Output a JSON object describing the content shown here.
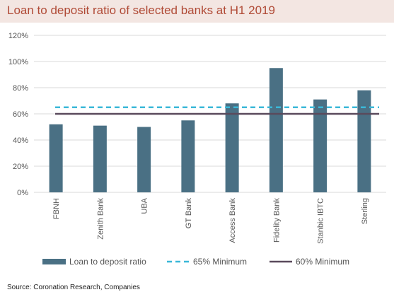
{
  "title": "Loan to deposit ratio of selected banks at H1 2019",
  "source": "Source: Coronation Research, Companies",
  "chart_data": {
    "type": "bar",
    "categories": [
      "FBNH",
      "Zenith Bank",
      "UBA",
      "GT Bank",
      "Access Bank",
      "Fidelity Bank",
      "Stanbic IBTC",
      "Sterling"
    ],
    "series": [
      {
        "name": "Loan to deposit ratio",
        "values": [
          52,
          51,
          50,
          55,
          68,
          95,
          71,
          78
        ],
        "color": "#4a7084"
      }
    ],
    "reference_lines": [
      {
        "name": "65% Minimum",
        "value": 65,
        "color": "#3bb8d8",
        "style": "dashed"
      },
      {
        "name": "60% Minimum",
        "value": 60,
        "color": "#5a4a5c",
        "style": "solid"
      }
    ],
    "yticks": [
      "0%",
      "20%",
      "40%",
      "60%",
      "80%",
      "100%",
      "120%"
    ],
    "ylim": [
      0,
      120
    ],
    "ylabel_format": "percent",
    "grid": true,
    "grid_color": "#d9d9d9",
    "legend_position": "bottom"
  }
}
